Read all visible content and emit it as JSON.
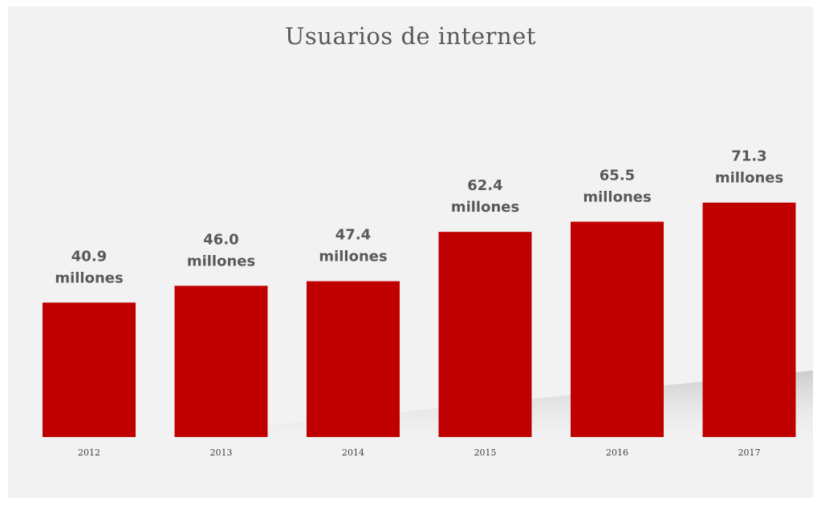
{
  "chart_data": {
    "type": "bar",
    "title": "Usuarios de internet",
    "xlabel": "",
    "ylabel": "",
    "categories": [
      "2012",
      "2013",
      "2014",
      "2015",
      "2016",
      "2017"
    ],
    "values": [
      40.9,
      46.0,
      47.4,
      62.4,
      65.5,
      71.3
    ],
    "value_labels": [
      "40.9",
      "46.0",
      "47.4",
      "62.4",
      "65.5",
      "71.3"
    ],
    "unit_label": "millones",
    "ylim": [
      0,
      80
    ],
    "grid": false,
    "legend": "none",
    "colors": {
      "bar": "#c00000",
      "background": "#f2f2f2",
      "text": "#595959"
    }
  }
}
